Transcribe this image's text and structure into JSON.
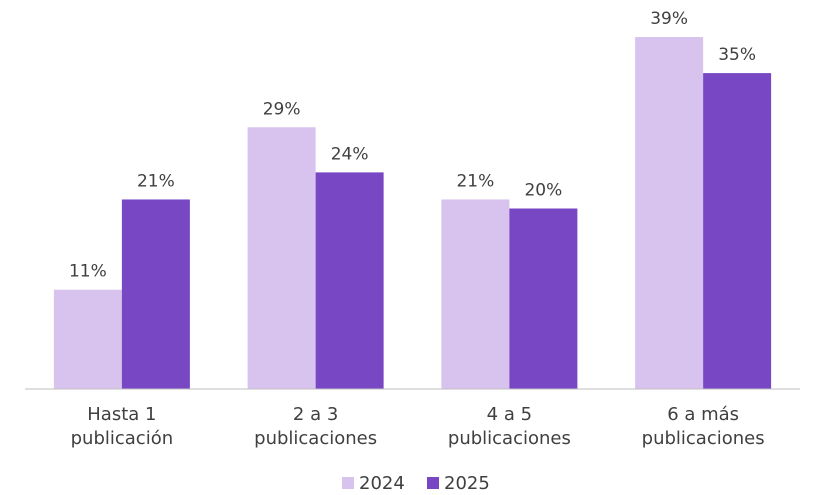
{
  "chart_data": {
    "type": "bar",
    "categories": [
      "Hasta 1 publicación",
      "2 a 3 publicaciones",
      "4 a 5 publicaciones",
      "6 a más publicaciones"
    ],
    "series": [
      {
        "name": "2024",
        "color": "#d8c2ee",
        "values": [
          11,
          29,
          21,
          39
        ],
        "value_labels": [
          "11%",
          "29%",
          "21%",
          "39%"
        ]
      },
      {
        "name": "2025",
        "color": "#7848c4",
        "values": [
          21,
          24,
          20,
          35
        ],
        "value_labels": [
          "21%",
          "24%",
          "20%",
          "35%"
        ]
      }
    ],
    "legend": "bottom"
  }
}
